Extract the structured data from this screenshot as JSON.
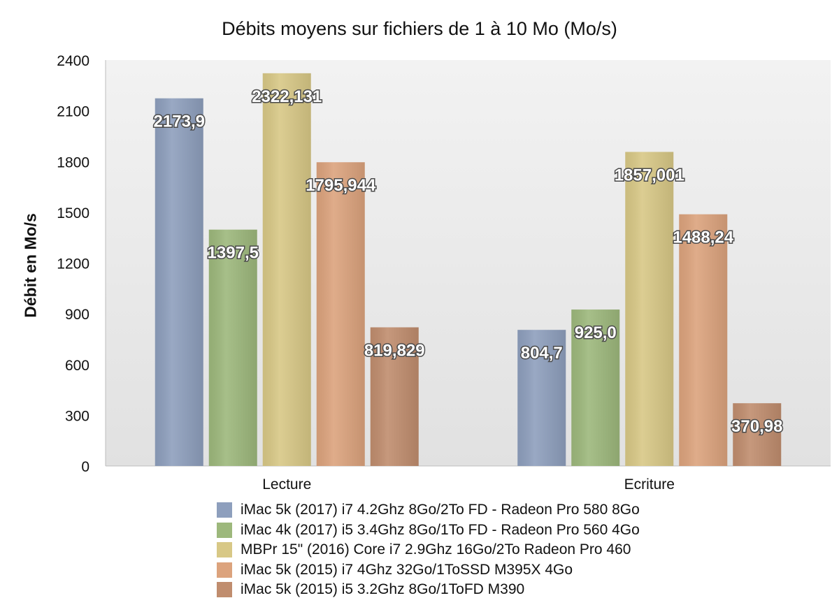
{
  "chart_data": {
    "type": "bar",
    "title": "Débits moyens sur fichiers de 1 à 10 Mo (Mo/s)",
    "ylabel": "Débit en Mo/s",
    "xlabel": "",
    "ylim": [
      0,
      2400
    ],
    "yticks": [
      "0",
      "300",
      "600",
      "900",
      "1200",
      "1500",
      "1800",
      "2100",
      "2400"
    ],
    "grid": false,
    "legend_position": "bottom",
    "categories": [
      "Lecture",
      "Ecriture"
    ],
    "series": [
      {
        "name": "iMac 5k (2017) i7 4.2Ghz 8Go/2To FD - Radeon Pro 580 8Go",
        "color": "#8e9fbd",
        "values": [
          2173.9,
          804.7
        ],
        "labels": [
          "2173,9",
          "804,7"
        ]
      },
      {
        "name": "iMac 4k (2017) i5 3.4Ghz 8Go/1To FD - Radeon Pro 560 4Go",
        "color": "#9db87c",
        "values": [
          1397.5,
          925.0
        ],
        "labels": [
          "1397,5",
          "925,0"
        ]
      },
      {
        "name": "MBPr 15\" (2016) Core i7 2.9Ghz 16Go/2To Radeon Pro 460",
        "color": "#d8c886",
        "values": [
          2322.131,
          1857.001
        ],
        "labels": [
          "2322,131",
          "1857,001"
        ]
      },
      {
        "name": "iMac 5k (2015) i7 4Ghz 32Go/1ToSSD M395X 4Go",
        "color": "#dca37d",
        "values": [
          1795.944,
          1488.24
        ],
        "labels": [
          "1795,944",
          "1488,24"
        ]
      },
      {
        "name": "iMac 5k (2015) i5 3.2Ghz 8Go/1ToFD M390",
        "color": "#c08d6e",
        "values": [
          819.829,
          370.98
        ],
        "labels": [
          "819,829",
          "370,98"
        ]
      }
    ]
  }
}
